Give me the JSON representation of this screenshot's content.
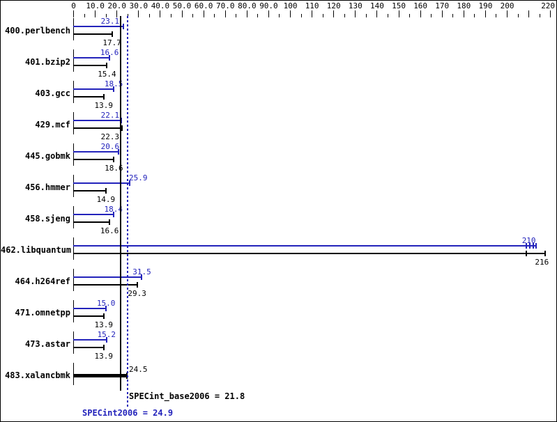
{
  "chart_data": {
    "type": "bar",
    "orientation": "horizontal",
    "title": "",
    "x_axis": {
      "min": 0,
      "max": 220,
      "major_tick_step": 10,
      "minor_tick_step": 5,
      "major_tick_labels": [
        {
          "value": 0,
          "label": "0"
        },
        {
          "value": 10,
          "label": "10.0"
        },
        {
          "value": 20,
          "label": "20.0"
        },
        {
          "value": 30,
          "label": "30.0"
        },
        {
          "value": 40,
          "label": "40.0"
        },
        {
          "value": 50,
          "label": "50.0"
        },
        {
          "value": 60,
          "label": "60.0"
        },
        {
          "value": 70,
          "label": "70.0"
        },
        {
          "value": 80,
          "label": "80.0"
        },
        {
          "value": 90,
          "label": "90.0"
        },
        {
          "value": 100,
          "label": "100"
        },
        {
          "value": 110,
          "label": "110"
        },
        {
          "value": 120,
          "label": "120"
        },
        {
          "value": 130,
          "label": "130"
        },
        {
          "value": 140,
          "label": "140"
        },
        {
          "value": 150,
          "label": "150"
        },
        {
          "value": 160,
          "label": "160"
        },
        {
          "value": 170,
          "label": "170"
        },
        {
          "value": 180,
          "label": "180"
        },
        {
          "value": 190,
          "label": "190"
        },
        {
          "value": 200,
          "label": "200"
        },
        {
          "value": 210,
          "label": ""
        },
        {
          "value": 220,
          "label": "220"
        }
      ]
    },
    "series": [
      {
        "name": "peak (SPECint2006)",
        "color": "#2323bb"
      },
      {
        "name": "base (SPECint_base2006)",
        "color": "#000000"
      }
    ],
    "rows": [
      {
        "benchmark": "400.perlbench",
        "peak": 23.1,
        "peak_label": "23.1",
        "base": 17.7,
        "base_label": "17.7"
      },
      {
        "benchmark": "401.bzip2",
        "peak": 16.6,
        "peak_label": "16.6",
        "base": 15.4,
        "base_label": "15.4"
      },
      {
        "benchmark": "403.gcc",
        "peak": 18.5,
        "peak_label": "18.5",
        "base": 13.9,
        "base_label": "13.9"
      },
      {
        "benchmark": "429.mcf",
        "peak": 22.1,
        "peak_label": "22.1",
        "base": 22.3,
        "base_label": "22.3"
      },
      {
        "benchmark": "445.gobmk",
        "peak": 20.6,
        "peak_label": "20.6",
        "base": 18.6,
        "base_label": "18.6"
      },
      {
        "benchmark": "456.hmmer",
        "peak": 25.9,
        "peak_label": "25.9",
        "base": 14.9,
        "base_label": "14.9"
      },
      {
        "benchmark": "458.sjeng",
        "peak": 18.4,
        "peak_label": "18.4",
        "base": 16.6,
        "base_label": "16.6"
      },
      {
        "benchmark": "462.libquantum",
        "peak": 210,
        "peak_label": "210",
        "base": 216,
        "base_label": "216",
        "peak_bar_to": 213.5,
        "peak_run_marks": [
          209,
          210.5,
          212,
          213.5
        ],
        "base_bar_to": 217.5,
        "base_run_marks": [
          209,
          217.5
        ]
      },
      {
        "benchmark": "464.h264ref",
        "peak": 31.5,
        "peak_label": "31.5",
        "base": 29.3,
        "base_label": "29.3"
      },
      {
        "benchmark": "471.omnetpp",
        "peak": 15.0,
        "peak_label": "15.0",
        "base": 13.9,
        "base_label": "13.9"
      },
      {
        "benchmark": "473.astar",
        "peak": 15.2,
        "peak_label": "15.2",
        "base": 13.9,
        "base_label": "13.9"
      },
      {
        "benchmark": "483.xalancbmk",
        "peak": null,
        "peak_label": "",
        "base": 24.5,
        "base_label": "24.5",
        "thick_single_bar": true
      }
    ],
    "means": {
      "base_value": 21.8,
      "base_text": "SPECint_base2006 = 21.8",
      "peak_value": 24.9,
      "peak_text": "SPECint2006 = 24.9"
    },
    "colors": {
      "peak": "#2323bb",
      "base": "#000000",
      "background": "#ffffff",
      "border": "#000000"
    },
    "legend_position": "none",
    "grid": false
  }
}
